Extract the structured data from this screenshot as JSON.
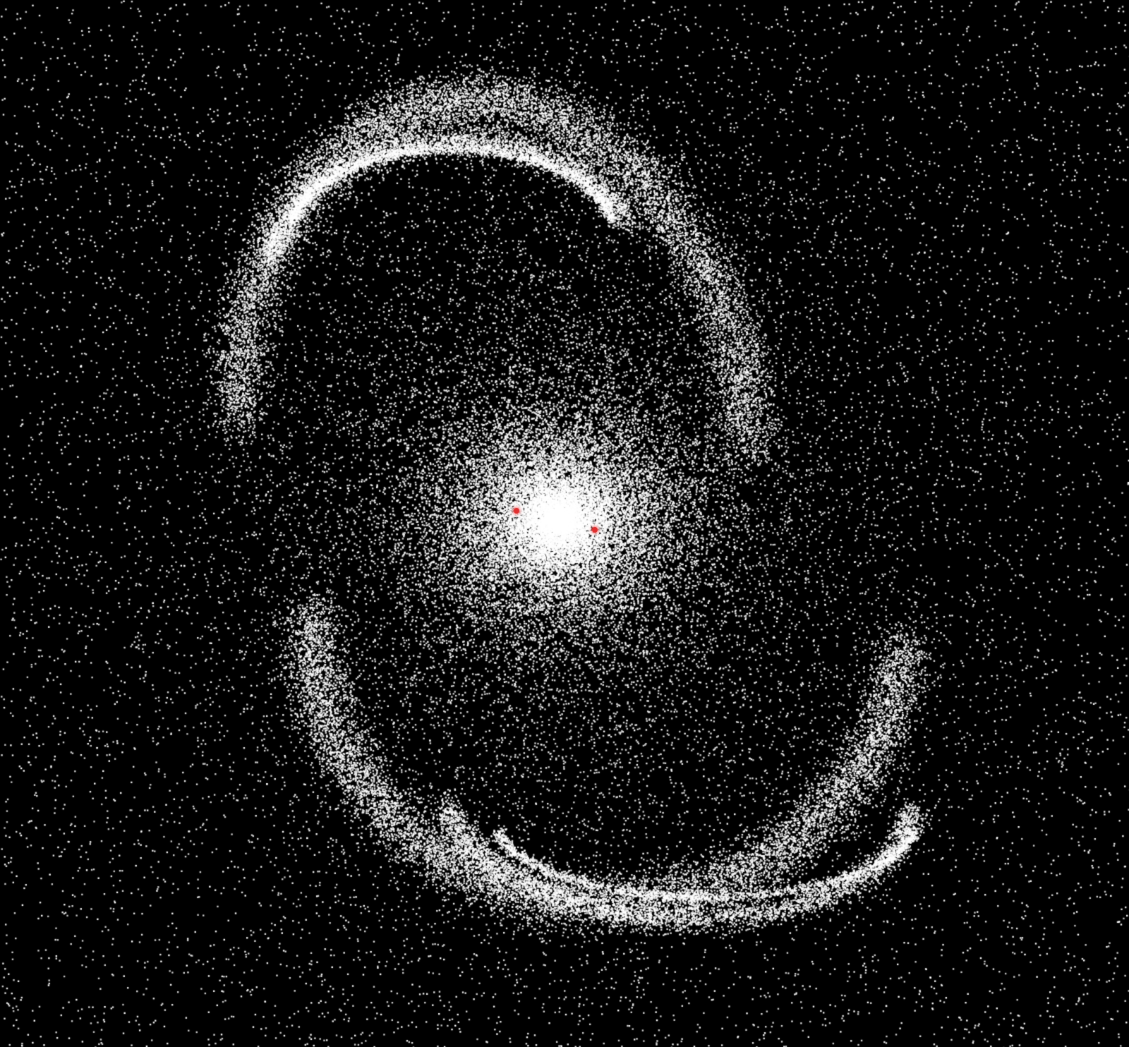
{
  "scene": {
    "background_color": "#000000",
    "particle_color": "#ffffff",
    "core_marker_color": "#e03030"
  },
  "objects": {
    "galaxy": "spiral-galaxy",
    "core_markers": [
      {
        "name": "core-marker-a"
      },
      {
        "name": "core-marker-b"
      }
    ]
  }
}
